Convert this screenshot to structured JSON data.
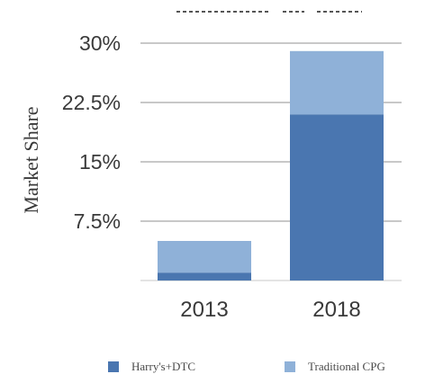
{
  "chart_data": {
    "type": "bar",
    "stacked": true,
    "title": "",
    "xlabel": "",
    "ylabel": "Market Share",
    "ylim": [
      0,
      30
    ],
    "yticks": [
      7.5,
      15,
      22.5,
      30
    ],
    "ytick_labels": [
      "7.5%",
      "15%",
      "22.5%",
      "30%"
    ],
    "categories": [
      "2013",
      "2018"
    ],
    "series": [
      {
        "name": "Harry's+DTC",
        "values": [
          1,
          21
        ],
        "color": "#4a76b0"
      },
      {
        "name": "Traditional CPG",
        "values": [
          4,
          8
        ],
        "color": "#8fb1d8"
      }
    ],
    "legend_position": "bottom",
    "grid": true
  }
}
